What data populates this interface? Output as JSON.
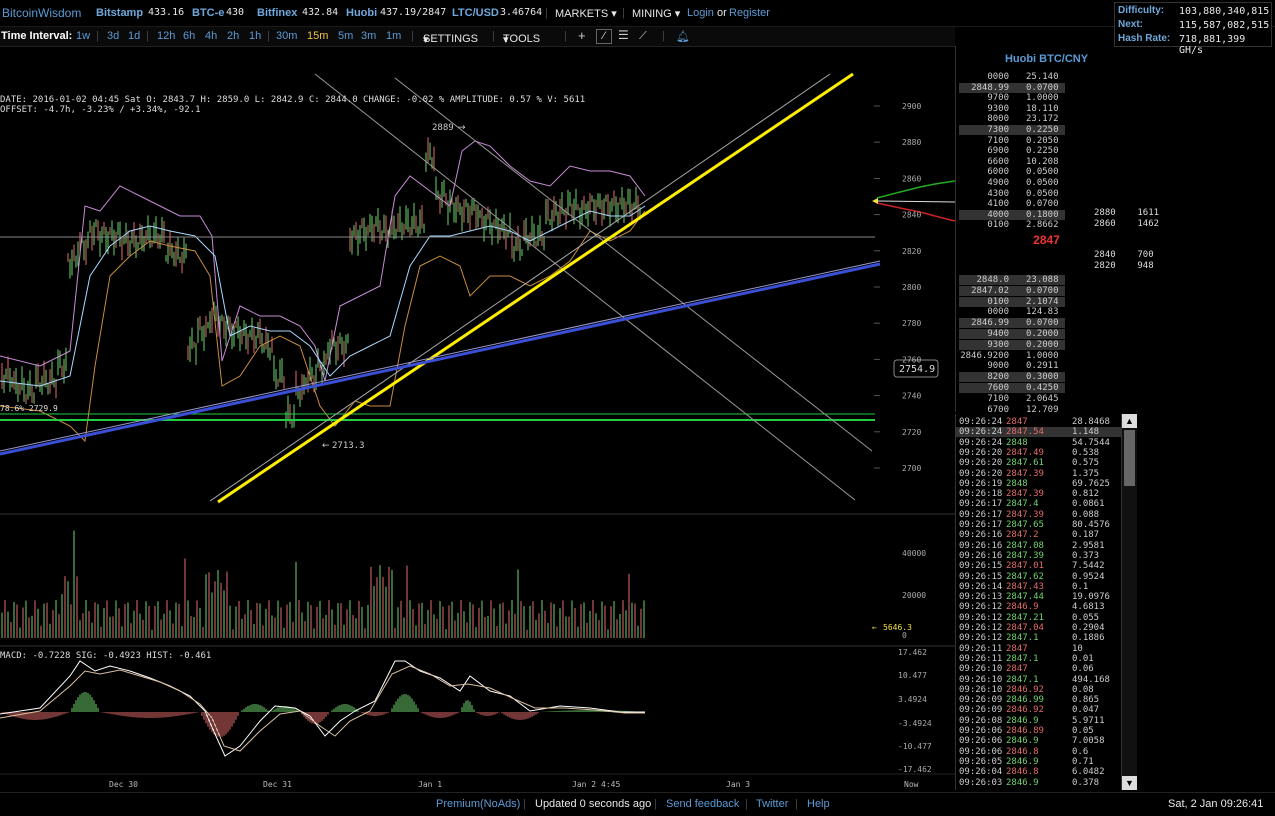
{
  "topbar": {
    "logo": "BitcoinWisdom",
    "exchanges": [
      {
        "name": "Bitstamp",
        "price": "433.16"
      },
      {
        "name": "BTC-e",
        "price": "430"
      },
      {
        "name": "Bitfinex",
        "price": "432.84"
      },
      {
        "name": "Huobi",
        "price": "437.19/2847"
      },
      {
        "name": "LTC/USD",
        "price": "3.46764"
      }
    ],
    "markets_label": "MARKETS",
    "mining_label": "MINING",
    "login_label": "Login",
    "or_label": "or",
    "register_label": "Register"
  },
  "difficulty": {
    "difficulty_label": "Difficulty:",
    "difficulty_value": "103,880,340,815",
    "next_label": "Next:",
    "next_value": "115,587,082,515",
    "hashrate_label": "Hash Rate:",
    "hashrate_value": "718,881,399 GH/s"
  },
  "toolbar": {
    "time_interval_label": "Time Interval:",
    "intervals": [
      "1w",
      "3d",
      "1d",
      "12h",
      "6h",
      "4h",
      "2h",
      "1h",
      "30m",
      "15m",
      "5m",
      "3m",
      "1m"
    ],
    "active_interval": "15m",
    "settings_label": "SETTINGS",
    "tools_label": "TOOLS"
  },
  "info": {
    "line1": "DATE: 2016-01-02 04:45 Sat   O: 2843.7   H: 2859.0   L: 2842.9   C: 2844.0   CHANGE: -0.02 %   AMPLITUDE: 0.57 %   V: 5611",
    "line2": "OFFSET: -4.7h, -3.23% / +3.34%, -92.1"
  },
  "chart_labels": {
    "high_marker": "2889",
    "low_marker": "2713.3",
    "fib_label": "78.6% 2729.9",
    "cursor_price": "2754.9",
    "volume_marker": "5646.3",
    "macd_line": "MACD: -0.7228   SIG: -0.4923   HIST: -0.461",
    "price_ticks": [
      "2900",
      "2880",
      "2860",
      "2840",
      "2820",
      "2800",
      "2780",
      "2760",
      "2740",
      "2720",
      "2700"
    ],
    "volume_ticks": [
      "40000",
      "20000",
      "0"
    ],
    "macd_ticks": [
      "17.462",
      "10.477",
      "3.4924",
      "-3.4924",
      "-10.477",
      "-17.462"
    ],
    "time_ticks": [
      "Dec 30",
      "Dec 31",
      "Jan 1",
      "Jan 2",
      "4:45",
      "Jan 3",
      "Now"
    ]
  },
  "orderbook": {
    "title": "Huobi BTC/CNY",
    "last_price": "2847",
    "asks": [
      [
        "0000",
        "25.140"
      ],
      [
        "2848.99",
        "0.0700"
      ],
      [
        "9700",
        "1.0000"
      ],
      [
        "9300",
        "18.110"
      ],
      [
        "8000",
        "23.172"
      ],
      [
        "7300",
        "0.2250"
      ],
      [
        "7100",
        "0.2050"
      ],
      [
        "6900",
        "0.2250"
      ],
      [
        "6600",
        "10.208"
      ],
      [
        "6000",
        "0.0500"
      ],
      [
        "4900",
        "0.0500"
      ],
      [
        "4300",
        "0.0500"
      ],
      [
        "4100",
        "0.0700"
      ],
      [
        "4000",
        "0.1800"
      ],
      [
        "0100",
        "2.8662"
      ]
    ],
    "bids": [
      [
        "2848.0",
        "23.088"
      ],
      [
        "2847.02",
        "0.0700"
      ],
      [
        "0100",
        "2.1074"
      ],
      [
        "0000",
        "124.83"
      ],
      [
        "2846.99",
        "0.0700"
      ],
      [
        "9400",
        "0.2000"
      ],
      [
        "9300",
        "0.2000"
      ],
      [
        "2846.9200",
        "1.0000"
      ],
      [
        "9000",
        "0.2911"
      ],
      [
        "8200",
        "0.3000"
      ],
      [
        "7600",
        "0.4250"
      ],
      [
        "7100",
        "2.0645"
      ],
      [
        "6700",
        "12.709"
      ]
    ],
    "side_prices": [
      [
        "2880",
        "1611"
      ],
      [
        "2860",
        "1462"
      ],
      [
        "2840",
        "700"
      ],
      [
        "2820",
        "948"
      ]
    ]
  },
  "trades": [
    [
      "09:26:24",
      "2847",
      "28.8468",
      "dn"
    ],
    [
      "09:26:24",
      "2847.54",
      "1.148",
      "dn"
    ],
    [
      "09:26:24",
      "2848",
      "54.7544",
      "up"
    ],
    [
      "09:26:20",
      "2847.49",
      "0.538",
      "dn"
    ],
    [
      "09:26:20",
      "2847.61",
      "0.575",
      "up"
    ],
    [
      "09:26:20",
      "2847.39",
      "1.375",
      "dn"
    ],
    [
      "09:26:19",
      "2848",
      "69.7625",
      "up"
    ],
    [
      "09:26:18",
      "2847.39",
      "0.812",
      "dn"
    ],
    [
      "09:26:17",
      "2847.4",
      "0.0861",
      "up"
    ],
    [
      "09:26:17",
      "2847.39",
      "0.088",
      "dn"
    ],
    [
      "09:26:17",
      "2847.65",
      "80.4576",
      "up"
    ],
    [
      "09:26:16",
      "2847.2",
      "0.187",
      "dn"
    ],
    [
      "09:26:16",
      "2847.08",
      "2.9581",
      "up"
    ],
    [
      "09:26:16",
      "2847.39",
      "0.373",
      "up"
    ],
    [
      "09:26:15",
      "2847.01",
      "7.5442",
      "dn"
    ],
    [
      "09:26:15",
      "2847.62",
      "0.9524",
      "up"
    ],
    [
      "09:26:14",
      "2847.43",
      "0.1",
      "dn"
    ],
    [
      "09:26:13",
      "2847.44",
      "19.0976",
      "up"
    ],
    [
      "09:26:12",
      "2846.9",
      "4.6813",
      "dn"
    ],
    [
      "09:26:12",
      "2847.21",
      "0.055",
      "up"
    ],
    [
      "09:26:12",
      "2847.04",
      "0.2904",
      "dn"
    ],
    [
      "09:26:12",
      "2847.1",
      "0.1886",
      "up"
    ],
    [
      "09:26:11",
      "2847",
      "10",
      "dn"
    ],
    [
      "09:26:11",
      "2847.1",
      "0.01",
      "up"
    ],
    [
      "09:26:10",
      "2847",
      "0.06",
      "dn"
    ],
    [
      "09:26:10",
      "2847.1",
      "494.168",
      "up"
    ],
    [
      "09:26:10",
      "2846.92",
      "0.08",
      "dn"
    ],
    [
      "09:26:09",
      "2846.99",
      "0.865",
      "up"
    ],
    [
      "09:26:09",
      "2846.92",
      "0.047",
      "dn"
    ],
    [
      "09:26:08",
      "2846.9",
      "5.9711",
      "up"
    ],
    [
      "09:26:06",
      "2846.89",
      "0.05",
      "dn"
    ],
    [
      "09:26:06",
      "2846.9",
      "7.0058",
      "up"
    ],
    [
      "09:26:06",
      "2846.8",
      "0.6",
      "dn"
    ],
    [
      "09:26:05",
      "2846.9",
      "0.71",
      "up"
    ],
    [
      "09:26:04",
      "2846.8",
      "6.0482",
      "dn"
    ],
    [
      "09:26:03",
      "2846.9",
      "0.378",
      "up"
    ]
  ],
  "footer": {
    "premium_label": "Premium(NoAds)",
    "updated_label": "Updated 0 seconds ago",
    "feedback_label": "Send feedback",
    "twitter_label": "Twitter",
    "help_label": "Help",
    "clock": "Sat, 2 Jan 09:26:41"
  },
  "colors": {
    "accent": "#5b9bd5",
    "up": "#6fd36f",
    "down": "#e36b6b",
    "trend_yellow": "#ffee00",
    "trend_blue": "#3b4fd6",
    "support_green": "#22cc44"
  }
}
